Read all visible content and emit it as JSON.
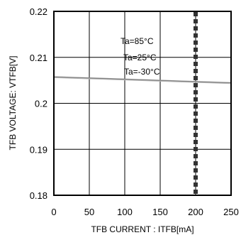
{
  "chart_data": {
    "type": "line",
    "xlabel": "TFB CURRENT : ITFB[mA]",
    "ylabel": "TFB VOLTAGE: VTFB[V]",
    "xlim": [
      0,
      250
    ],
    "ylim": [
      0.18,
      0.22
    ],
    "x_ticks": [
      "0",
      "50",
      "100",
      "150",
      "200",
      "250"
    ],
    "y_ticks": [
      "0.18",
      "0.19",
      "0.2",
      "0.21",
      "0.22"
    ],
    "grid": true,
    "series": [
      {
        "name": "Ta=85°C",
        "x": [
          0,
          250
        ],
        "y": [
          0.2058,
          0.2045
        ]
      },
      {
        "name": "Ta=25°C",
        "x": [
          0,
          250
        ],
        "y": [
          0.2057,
          0.2044
        ]
      },
      {
        "name": "Ta=-30°C",
        "x": [
          0,
          250
        ],
        "y": [
          0.2056,
          0.2043
        ]
      }
    ],
    "reference_line": {
      "x": 200,
      "style": "dashed"
    },
    "annotations": [
      "Ta=85°C",
      "Ta=25°C",
      "Ta=-30°C"
    ]
  }
}
